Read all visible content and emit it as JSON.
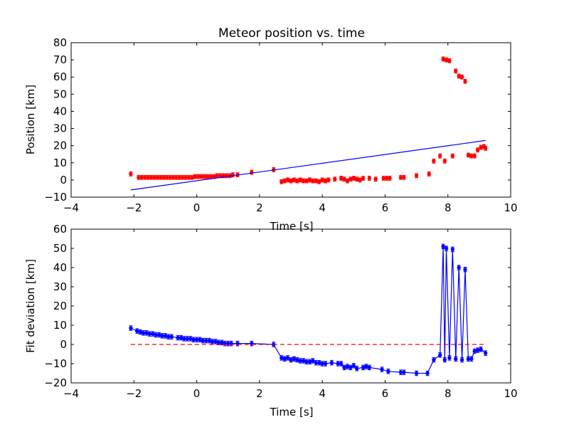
{
  "chart_data": [
    {
      "type": "scatter",
      "title": "Meteor position vs. time",
      "xlabel": "Time [s]",
      "ylabel": "Position [km]",
      "xlim": [
        -4,
        10
      ],
      "ylim": [
        -10,
        80
      ],
      "xticks": [
        -4,
        -2,
        0,
        2,
        4,
        6,
        8,
        10
      ],
      "yticks": [
        -10,
        0,
        10,
        20,
        30,
        40,
        50,
        60,
        70,
        80
      ],
      "grid": false,
      "series": [
        {
          "kind": "points_with_errorbars",
          "color": "#ff0000",
          "x": [
            -2.1,
            -1.85,
            -1.75,
            -1.65,
            -1.55,
            -1.45,
            -1.35,
            -1.25,
            -1.15,
            -1.05,
            -0.95,
            -0.85,
            -0.75,
            -0.65,
            -0.55,
            -0.45,
            -0.35,
            -0.25,
            -0.15,
            -0.05,
            0.05,
            0.15,
            0.25,
            0.35,
            0.45,
            0.55,
            0.65,
            0.75,
            0.85,
            0.95,
            1.05,
            1.15,
            1.3,
            1.75,
            2.45,
            2.7,
            2.8,
            2.9,
            3.0,
            3.1,
            3.2,
            3.3,
            3.4,
            3.5,
            3.6,
            3.7,
            3.8,
            3.9,
            4.0,
            4.1,
            4.2,
            4.4,
            4.6,
            4.7,
            4.8,
            4.9,
            5.0,
            5.1,
            5.2,
            5.3,
            5.5,
            5.7,
            5.95,
            6.05,
            6.15,
            6.5,
            6.6,
            7.0,
            7.4,
            7.55,
            7.75,
            7.85,
            7.9,
            7.95,
            8.05,
            8.15,
            8.25,
            8.35,
            8.45,
            8.55,
            8.65,
            8.75,
            8.85,
            8.95,
            9.05,
            9.15,
            9.2
          ],
          "y": [
            3.5,
            1.5,
            1.5,
            1.5,
            1.5,
            1.5,
            1.5,
            1.5,
            1.5,
            1.5,
            1.5,
            1.5,
            1.5,
            1.5,
            1.5,
            1.5,
            1.5,
            1.5,
            1.5,
            2.0,
            2.0,
            2.0,
            2.0,
            2.0,
            2.0,
            2.0,
            2.5,
            2.5,
            2.5,
            2.5,
            2.5,
            3.0,
            3.0,
            4.5,
            6.0,
            -1.0,
            -0.5,
            0.0,
            -0.5,
            0.0,
            -0.5,
            0.0,
            -0.5,
            -0.5,
            0.0,
            -0.5,
            -0.5,
            -1.0,
            0.0,
            -0.5,
            0.0,
            0.5,
            1.0,
            0.5,
            -0.5,
            0.5,
            1.0,
            0.5,
            0.0,
            1.0,
            1.0,
            0.5,
            1.0,
            1.0,
            1.0,
            1.5,
            1.5,
            2.5,
            3.5,
            11.0,
            14.0,
            70.5,
            11.0,
            70.0,
            69.5,
            14.0,
            63.5,
            60.5,
            60.0,
            57.5,
            14.5,
            14.0,
            14.0,
            17.5,
            19.0,
            19.5,
            18.5
          ],
          "yerr": 1.2
        },
        {
          "kind": "line",
          "color": "#0000ff",
          "x": [
            -2.1,
            9.2
          ],
          "y": [
            -5.8,
            23.0
          ]
        }
      ]
    },
    {
      "type": "line",
      "title": "",
      "xlabel": "Time [s]",
      "ylabel": "Fit deviation [km]",
      "xlim": [
        -4,
        10
      ],
      "ylim": [
        -20,
        60
      ],
      "xticks": [
        -4,
        -2,
        0,
        2,
        4,
        6,
        8,
        10
      ],
      "yticks": [
        -20,
        -10,
        0,
        10,
        20,
        30,
        40,
        50,
        60
      ],
      "grid": false,
      "series": [
        {
          "kind": "line_with_errorbars",
          "color": "#0000ff",
          "x": [
            -2.1,
            -1.9,
            -1.8,
            -1.7,
            -1.6,
            -1.5,
            -1.4,
            -1.3,
            -1.2,
            -1.1,
            -1.0,
            -0.9,
            -0.8,
            -0.6,
            -0.5,
            -0.4,
            -0.3,
            -0.2,
            -0.1,
            0.0,
            0.1,
            0.2,
            0.3,
            0.4,
            0.5,
            0.6,
            0.7,
            0.8,
            0.9,
            1.0,
            1.1,
            1.3,
            1.75,
            2.45,
            2.7,
            2.8,
            2.9,
            3.0,
            3.1,
            3.2,
            3.3,
            3.4,
            3.5,
            3.6,
            3.7,
            3.8,
            3.9,
            4.0,
            4.1,
            4.3,
            4.5,
            4.6,
            4.7,
            4.8,
            4.9,
            5.0,
            5.1,
            5.3,
            5.4,
            5.5,
            5.9,
            6.1,
            6.5,
            6.6,
            7.0,
            7.35,
            7.55,
            7.75,
            7.85,
            7.9,
            7.95,
            8.05,
            8.15,
            8.25,
            8.35,
            8.45,
            8.55,
            8.65,
            8.75,
            8.85,
            8.95,
            9.05,
            9.2
          ],
          "y": [
            8.5,
            7.0,
            6.5,
            6.0,
            6.0,
            5.5,
            5.5,
            5.0,
            5.0,
            4.5,
            4.5,
            4.0,
            4.0,
            3.5,
            3.5,
            3.0,
            3.0,
            3.0,
            2.5,
            2.5,
            2.5,
            2.0,
            2.0,
            2.0,
            1.5,
            1.5,
            1.0,
            1.0,
            0.5,
            0.5,
            0.5,
            0.5,
            0.5,
            0.0,
            -7.0,
            -7.5,
            -7.0,
            -8.0,
            -7.5,
            -8.0,
            -8.5,
            -8.5,
            -9.0,
            -9.0,
            -8.5,
            -9.5,
            -9.5,
            -10.0,
            -10.0,
            -9.5,
            -10.0,
            -10.0,
            -12.0,
            -11.5,
            -12.0,
            -11.0,
            -12.5,
            -12.0,
            -11.5,
            -12.0,
            -13.0,
            -14.0,
            -14.5,
            -14.5,
            -15.0,
            -15.0,
            -8.0,
            -5.5,
            51.0,
            -8.0,
            50.0,
            -7.0,
            49.5,
            -7.5,
            40.0,
            -8.0,
            39.0,
            -7.5,
            -7.5,
            -3.5,
            -3.0,
            -2.5,
            -4.5
          ],
          "yerr": 1.2
        },
        {
          "kind": "dashed_line",
          "color": "#ff0000",
          "x": [
            -2.1,
            9.2
          ],
          "y": [
            0,
            0
          ]
        }
      ]
    }
  ]
}
